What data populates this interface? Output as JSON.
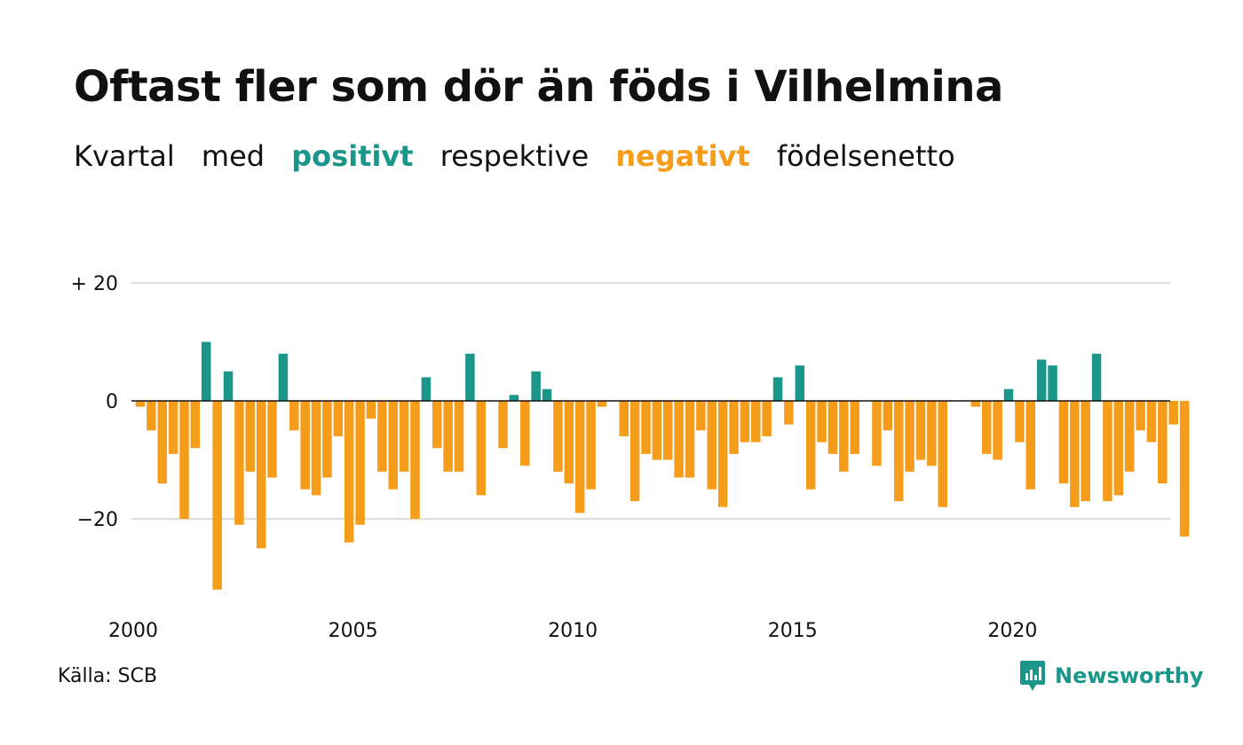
{
  "title": "Oftast fler som dör än föds i Vilhelmina",
  "subtitle": {
    "part1": "Kvartal",
    "part2": "med",
    "positive": "positivt",
    "part3": "respektive",
    "negative": "negativt",
    "part4": "födelsenetto"
  },
  "source": "Källa: SCB",
  "brand": "Newsworthy",
  "colors": {
    "positive": "#1a968a",
    "negative": "#f59d1b",
    "grid": "#dddddd",
    "zero_line": "#111111"
  },
  "chart_data": {
    "type": "bar",
    "x_start": "2000 Q1",
    "x_ticks": [
      "2000",
      "2005",
      "2010",
      "2015",
      "2020"
    ],
    "y_ticks": [
      "+ 20",
      "0",
      "−20"
    ],
    "ylim": [
      -33,
      20
    ],
    "values": [
      -1,
      -5,
      -14,
      -9,
      -20,
      -8,
      10,
      -32,
      5,
      -21,
      -12,
      -25,
      -13,
      8,
      -5,
      -15,
      -16,
      -13,
      -6,
      -24,
      -21,
      -3,
      -12,
      -15,
      -12,
      -20,
      4,
      -8,
      -12,
      -12,
      8,
      -16,
      0,
      -8,
      1,
      -11,
      5,
      2,
      -12,
      -14,
      -19,
      -15,
      -1,
      0,
      -6,
      -17,
      -9,
      -10,
      -10,
      -13,
      -13,
      -5,
      -15,
      -18,
      -9,
      -7,
      -7,
      -6,
      4,
      -4,
      6,
      -15,
      -7,
      -9,
      -12,
      -9,
      0,
      -11,
      -5,
      -17,
      -12,
      -10,
      -11,
      -18,
      0,
      0,
      -1,
      -9,
      -10,
      2,
      -7,
      -15,
      7,
      6,
      -14,
      -18,
      -17,
      8,
      -17,
      -16,
      -12,
      -5,
      -7,
      -14,
      -4,
      -23
    ]
  }
}
